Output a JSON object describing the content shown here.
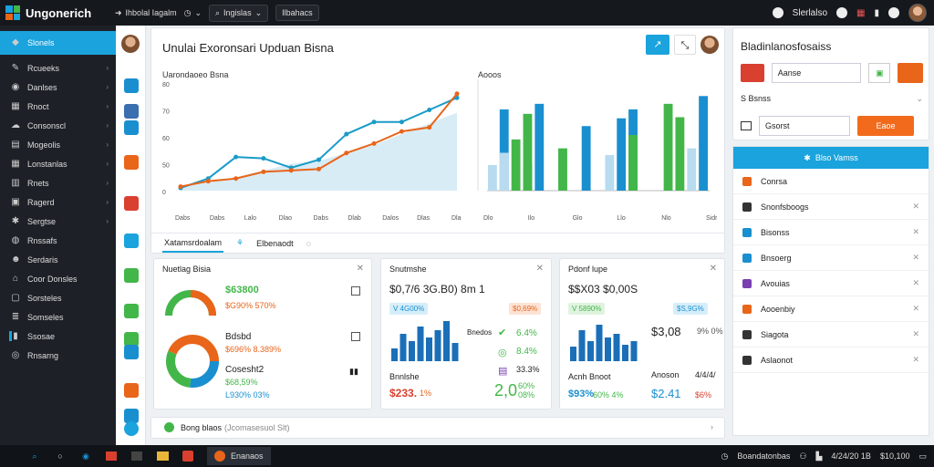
{
  "app": {
    "name": "Ungonerich"
  },
  "topbar": {
    "menu": "Ihbolal Iagalm",
    "search": "Ingislas",
    "action": "Ilbahacs",
    "user": "Slerlalso"
  },
  "sidebar": {
    "items": [
      {
        "label": "Slonels",
        "icon": "layers-icon",
        "active": true
      },
      {
        "label": "Rcueeks",
        "icon": "pen-icon"
      },
      {
        "label": "Danlses",
        "icon": "dashboard-icon"
      },
      {
        "label": "Rnoct",
        "icon": "grid-icon"
      },
      {
        "label": "Consonscl",
        "icon": "cloud-icon"
      },
      {
        "label": "Mogeolis",
        "icon": "calendar-icon"
      },
      {
        "label": "Lonstanlas",
        "icon": "table-icon"
      },
      {
        "label": "Rnets",
        "icon": "chart-icon"
      },
      {
        "label": "Ragerd",
        "icon": "doc-icon"
      },
      {
        "label": "Sergtse",
        "icon": "gear-icon"
      },
      {
        "label": "Rnssafs",
        "icon": "user-icon"
      },
      {
        "label": "Serdaris",
        "icon": "people-icon"
      },
      {
        "label": "Coor Donsles",
        "icon": "cart-icon"
      },
      {
        "label": "Sorsteles",
        "icon": "box-icon"
      },
      {
        "label": "Somseles",
        "icon": "list-icon"
      },
      {
        "label": "Ssosae",
        "icon": "bar-icon",
        "selected": true
      },
      {
        "label": "Rnsarng",
        "icon": "globe-icon"
      }
    ]
  },
  "main": {
    "title": "Unulai Exoronsari Upduan Bisna",
    "line_chart_label": "Uarondaoeo Bsna",
    "bar_chart_label": "Aooos",
    "subnav": {
      "tab1": "Xatamsrdoalam",
      "tab2": "Elbenaodt"
    }
  },
  "chart_data": [
    {
      "type": "line",
      "title": "Uarondaoeo Bsna",
      "yticks": [
        "80",
        "70",
        "60",
        "50",
        "0"
      ],
      "xticks": [
        "Dabs",
        "Dabs",
        "Lalo",
        "Dlao",
        "Dabs",
        "Dlab",
        "Dalos",
        "Dlas",
        "Dlansas"
      ],
      "x": [
        0,
        1,
        2,
        3,
        4,
        5,
        6,
        7,
        8,
        9,
        10
      ],
      "series": [
        {
          "color": "#1a9bc7",
          "values": [
            2,
            9,
            25,
            24,
            17,
            23,
            42,
            51,
            51,
            60,
            69
          ]
        },
        {
          "color": "#e8651a",
          "values": [
            3,
            7,
            9,
            14,
            15,
            16,
            28,
            35,
            44,
            47,
            72
          ]
        },
        {
          "color": "#a9d4ec",
          "values": [
            4,
            6,
            10,
            15,
            20,
            22,
            28,
            34,
            42,
            50,
            58
          ]
        }
      ],
      "ylim": [
        0,
        80
      ]
    },
    {
      "type": "bar",
      "title": "Aooos",
      "xticks": [
        "Dlo",
        "Ilo",
        "Glo",
        "Llo",
        "Nlo",
        "Sidrrar"
      ],
      "series": [
        {
          "color": "#1a8fd0",
          "values": [
            0,
            73,
            0,
            23,
            78,
            0,
            0,
            0,
            58,
            0,
            0,
            65,
            73,
            0,
            0,
            0,
            0,
            0,
            85
          ]
        },
        {
          "color": "#43b649",
          "values": [
            0,
            0,
            46,
            69,
            0,
            0,
            38,
            0,
            0,
            0,
            0,
            0,
            50,
            0,
            0,
            78,
            66,
            0,
            0
          ]
        },
        {
          "color": "#b8dbef",
          "values": [
            23,
            34,
            0,
            0,
            0,
            0,
            0,
            0,
            0,
            0,
            32,
            0,
            0,
            0,
            0,
            0,
            0,
            38,
            0
          ]
        }
      ],
      "ylim": [
        0,
        100
      ]
    }
  ],
  "cards": [
    {
      "title": "Nuetlag Bisia",
      "v1": "$63800",
      "v1b": "$G90% 570%",
      "v2": "Bdsbd",
      "v2b": "$696% 8.389%",
      "v3": "Cosesht2",
      "v3b": "$68,59%",
      "v3c": "L930% 03%"
    },
    {
      "title": "Snutmshe",
      "big": "$0,7/6 3G.B0) 8m 1",
      "tag1": "V 4G00%",
      "tag2": "$0,69%",
      "lbl1": "Bnedos",
      "r1": "6.4%",
      "r2": "8.4%",
      "r3": "33.3%",
      "foot_label": "Bnnlshe",
      "foot1": "$233.",
      "foot1b": "1%",
      "foot2": "2,0",
      "foot2b": "60% 08%"
    },
    {
      "title": "Pdonf lupe",
      "big": "$$X03 $0,00S",
      "tag1": "V 5890%",
      "tag2": "$S,9G%",
      "amount": "$3,08",
      "amountb": "9% 0%",
      "foot_label": "Acnh Bnoot",
      "foot1": "$93%",
      "foot1b": "60% 4%",
      "foot2": "$2.41",
      "foot2b": "$6%",
      "foot3": "Anoson",
      "foot3b": "4/4/4/"
    }
  ],
  "bottom": {
    "label": "Bong blaos",
    "hint": "(Jcomasesuol Slt)"
  },
  "rpanel": {
    "title": "Bladinlanosfosaiss",
    "input1": "Aanse",
    "row2": "S  Bsnss",
    "input2": "Gsorst",
    "button": "Eaoe",
    "list_head": "Blso Vamss",
    "items": [
      {
        "label": "Conrsa",
        "color": "#e8651a"
      },
      {
        "label": "Snonfsboogs",
        "color": "#333333"
      },
      {
        "label": "Bisonss",
        "color": "#1a8fd0"
      },
      {
        "label": "Bnsoerg",
        "color": "#1a8fd0"
      },
      {
        "label": "Avouias",
        "color": "#7a3fb0"
      },
      {
        "label": "Aooenbiy",
        "color": "#e8651a"
      },
      {
        "label": "Siagota",
        "color": "#333333"
      },
      {
        "label": "Aslaonot",
        "color": "#333333"
      }
    ]
  },
  "taskbar": {
    "app": "Enanaos",
    "tray": "Boandatonbas",
    "clock": "4/24/20 1B",
    "date": "$10,100"
  }
}
